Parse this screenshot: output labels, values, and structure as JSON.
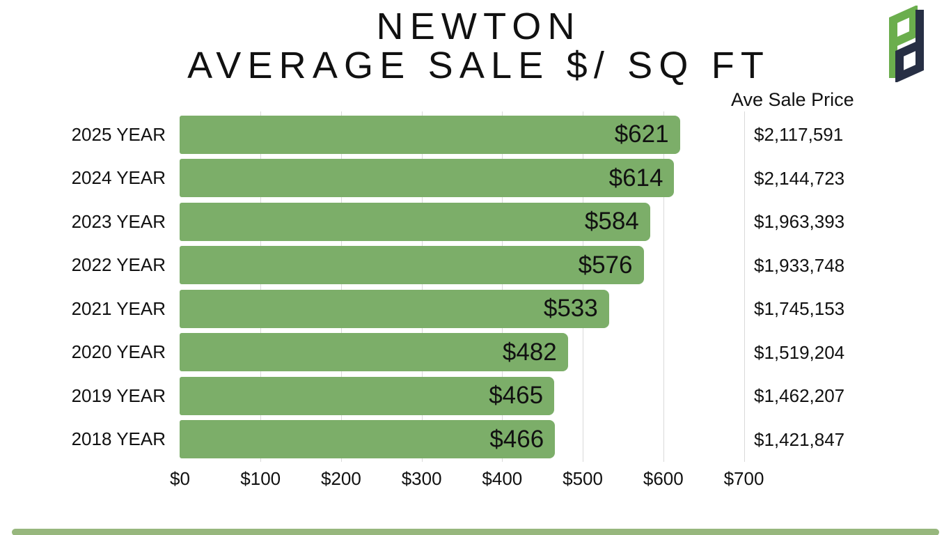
{
  "title": {
    "line1": "NEWTON",
    "line2": "AVERAGE SALE $/ SQ FT"
  },
  "logo": {
    "letters": "Pd",
    "green": "#6BAE4D",
    "navy": "#272F44"
  },
  "chart_data": {
    "type": "bar",
    "orientation": "horizontal",
    "title": "NEWTON AVERAGE SALE $/ SQ FT",
    "categories": [
      "2025 YEAR",
      "2024 YEAR",
      "2023 YEAR",
      "2022 YEAR",
      "2021 YEAR",
      "2020 YEAR",
      "2019 YEAR",
      "2018 YEAR"
    ],
    "values": [
      621,
      614,
      584,
      576,
      533,
      482,
      465,
      466
    ],
    "bar_labels": [
      "$621",
      "$614",
      "$584",
      "$576",
      "$533",
      "$482",
      "$465",
      "$466"
    ],
    "price_column": {
      "header": "Ave Sale Price",
      "values": [
        "$2,117,591",
        "$2,144,723",
        "$1,963,393",
        "$1,933,748",
        "$1,745,153",
        "$1,519,204",
        "$1,462,207",
        "$1,421,847"
      ]
    },
    "x_axis": {
      "ticks": [
        "$0",
        "$100",
        "$200",
        "$300",
        "$400",
        "$500",
        "$600",
        "$700"
      ],
      "tick_values": [
        0,
        100,
        200,
        300,
        400,
        500,
        600,
        700
      ],
      "min": 0,
      "max": 700
    },
    "grid": true,
    "legend": false,
    "bar_color": "#7CAE69",
    "gridline_color": "#D9D9D9"
  },
  "colors": {
    "background": "#FFFFFF",
    "text": "#111111",
    "bar_green": "#7CAE69",
    "accent_strip_green": "#97B77D",
    "logo_green": "#6BAE4D",
    "logo_navy": "#272F44",
    "gridline": "#D9D9D9"
  }
}
